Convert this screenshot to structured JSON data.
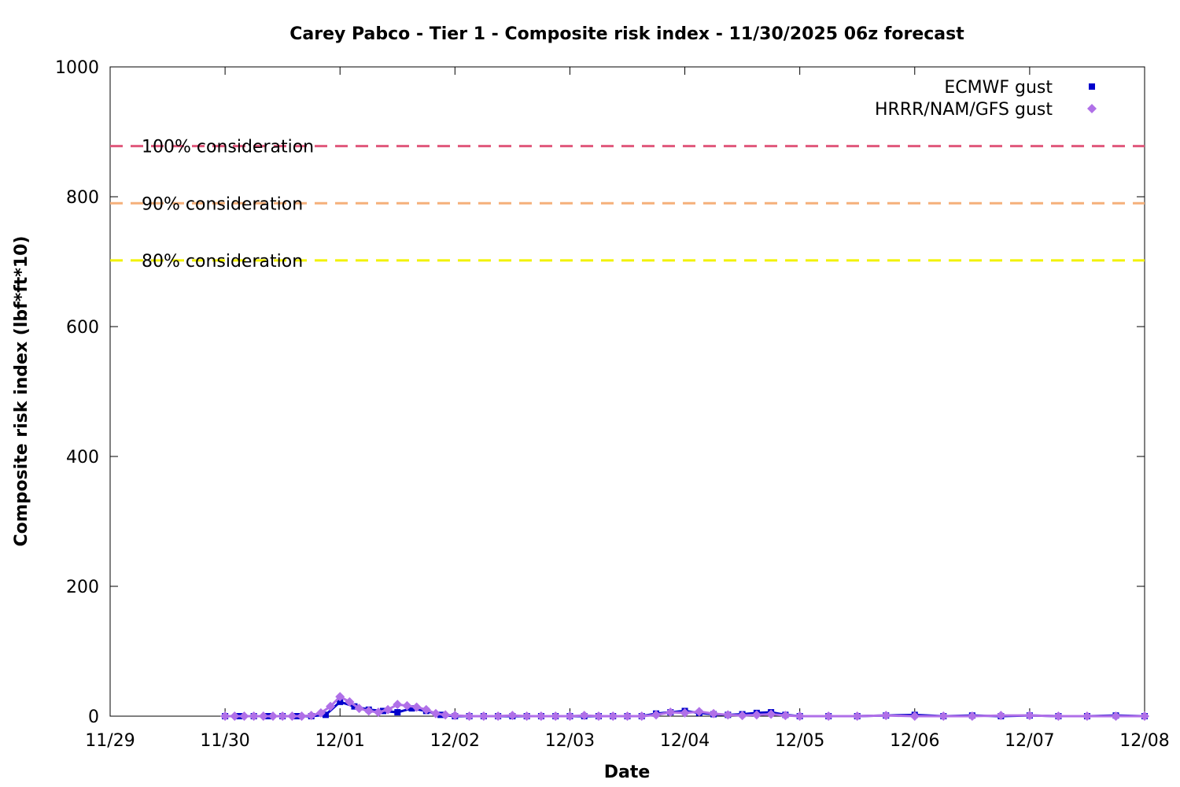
{
  "chart_data": {
    "type": "scatter",
    "title": "Carey Pabco - Tier 1 - Composite risk index - 11/30/2025 06z forecast",
    "xlabel": "Date",
    "ylabel": "Composite risk index (lbf*ft*10)",
    "x_unit": "day",
    "xlim": [
      "2025-11-29T00",
      "2025-12-08T00"
    ],
    "ylim": [
      0,
      1000
    ],
    "x_ticks": [
      "11/29",
      "11/30",
      "12/01",
      "12/02",
      "12/03",
      "12/04",
      "12/05",
      "12/06",
      "12/07",
      "12/08"
    ],
    "y_ticks": [
      0,
      200,
      400,
      600,
      800,
      1000
    ],
    "grid": false,
    "legend_position": "top-right",
    "reference_lines": [
      {
        "label": "100% consideration",
        "y": 878,
        "color": "#e0587b"
      },
      {
        "label": "90% consideration",
        "y": 790,
        "color": "#f5b07a"
      },
      {
        "label": "80% consideration",
        "y": 702,
        "color": "#f2f200"
      }
    ],
    "series": [
      {
        "name": "ECMWF gust",
        "color": "#0000cc",
        "marker": "square",
        "x": [
          "2025-11-30T00",
          "2025-11-30T03",
          "2025-11-30T06",
          "2025-11-30T09",
          "2025-11-30T12",
          "2025-11-30T15",
          "2025-11-30T18",
          "2025-11-30T21",
          "2025-12-01T00",
          "2025-12-01T03",
          "2025-12-01T06",
          "2025-12-01T09",
          "2025-12-01T12",
          "2025-12-01T15",
          "2025-12-01T18",
          "2025-12-01T21",
          "2025-12-02T00",
          "2025-12-02T03",
          "2025-12-02T06",
          "2025-12-02T09",
          "2025-12-02T12",
          "2025-12-02T15",
          "2025-12-02T18",
          "2025-12-02T21",
          "2025-12-03T00",
          "2025-12-03T03",
          "2025-12-03T06",
          "2025-12-03T09",
          "2025-12-03T12",
          "2025-12-03T15",
          "2025-12-03T18",
          "2025-12-03T21",
          "2025-12-04T00",
          "2025-12-04T03",
          "2025-12-04T06",
          "2025-12-04T09",
          "2025-12-04T12",
          "2025-12-04T15",
          "2025-12-04T18",
          "2025-12-04T21",
          "2025-12-05T00",
          "2025-12-05T06",
          "2025-12-05T12",
          "2025-12-05T18",
          "2025-12-06T00",
          "2025-12-06T06",
          "2025-12-06T12",
          "2025-12-06T18",
          "2025-12-07T00",
          "2025-12-07T06",
          "2025-12-07T12",
          "2025-12-07T18",
          "2025-12-08T00"
        ],
        "values": [
          0,
          0,
          0,
          0,
          0,
          0,
          0,
          2,
          22,
          15,
          10,
          8,
          6,
          12,
          8,
          2,
          0,
          0,
          0,
          0,
          0,
          0,
          0,
          0,
          0,
          0,
          0,
          0,
          0,
          0,
          4,
          6,
          8,
          5,
          3,
          2,
          3,
          5,
          6,
          2,
          0,
          0,
          0,
          1,
          2,
          0,
          1,
          0,
          1,
          0,
          0,
          1,
          0
        ]
      },
      {
        "name": "HRRR/NAM/GFS gust",
        "color": "#b070e8",
        "marker": "diamond",
        "x": [
          "2025-11-30T00",
          "2025-11-30T02",
          "2025-11-30T04",
          "2025-11-30T06",
          "2025-11-30T08",
          "2025-11-30T10",
          "2025-11-30T12",
          "2025-11-30T14",
          "2025-11-30T16",
          "2025-11-30T18",
          "2025-11-30T20",
          "2025-11-30T22",
          "2025-12-01T00",
          "2025-12-01T02",
          "2025-12-01T04",
          "2025-12-01T06",
          "2025-12-01T08",
          "2025-12-01T10",
          "2025-12-01T12",
          "2025-12-01T14",
          "2025-12-01T16",
          "2025-12-01T18",
          "2025-12-01T20",
          "2025-12-01T22",
          "2025-12-02T00",
          "2025-12-02T03",
          "2025-12-02T06",
          "2025-12-02T09",
          "2025-12-02T12",
          "2025-12-02T15",
          "2025-12-02T18",
          "2025-12-02T21",
          "2025-12-03T00",
          "2025-12-03T03",
          "2025-12-03T06",
          "2025-12-03T09",
          "2025-12-03T12",
          "2025-12-03T15",
          "2025-12-03T18",
          "2025-12-03T21",
          "2025-12-04T00",
          "2025-12-04T03",
          "2025-12-04T06",
          "2025-12-04T09",
          "2025-12-04T12",
          "2025-12-04T15",
          "2025-12-04T18",
          "2025-12-04T21",
          "2025-12-05T00",
          "2025-12-05T06",
          "2025-12-05T12",
          "2025-12-05T18",
          "2025-12-06T00",
          "2025-12-06T06",
          "2025-12-06T12",
          "2025-12-06T18",
          "2025-12-07T00",
          "2025-12-07T06",
          "2025-12-07T12",
          "2025-12-07T18",
          "2025-12-08T00"
        ],
        "values": [
          0,
          0,
          0,
          0,
          0,
          0,
          0,
          0,
          0,
          1,
          5,
          15,
          30,
          22,
          12,
          8,
          6,
          10,
          18,
          16,
          14,
          10,
          4,
          2,
          1,
          0,
          0,
          0,
          1,
          0,
          0,
          0,
          0,
          1,
          0,
          0,
          0,
          0,
          2,
          6,
          5,
          7,
          4,
          2,
          1,
          2,
          3,
          1,
          0,
          0,
          0,
          1,
          0,
          0,
          0,
          1,
          1,
          0,
          0,
          0,
          0
        ]
      }
    ]
  }
}
